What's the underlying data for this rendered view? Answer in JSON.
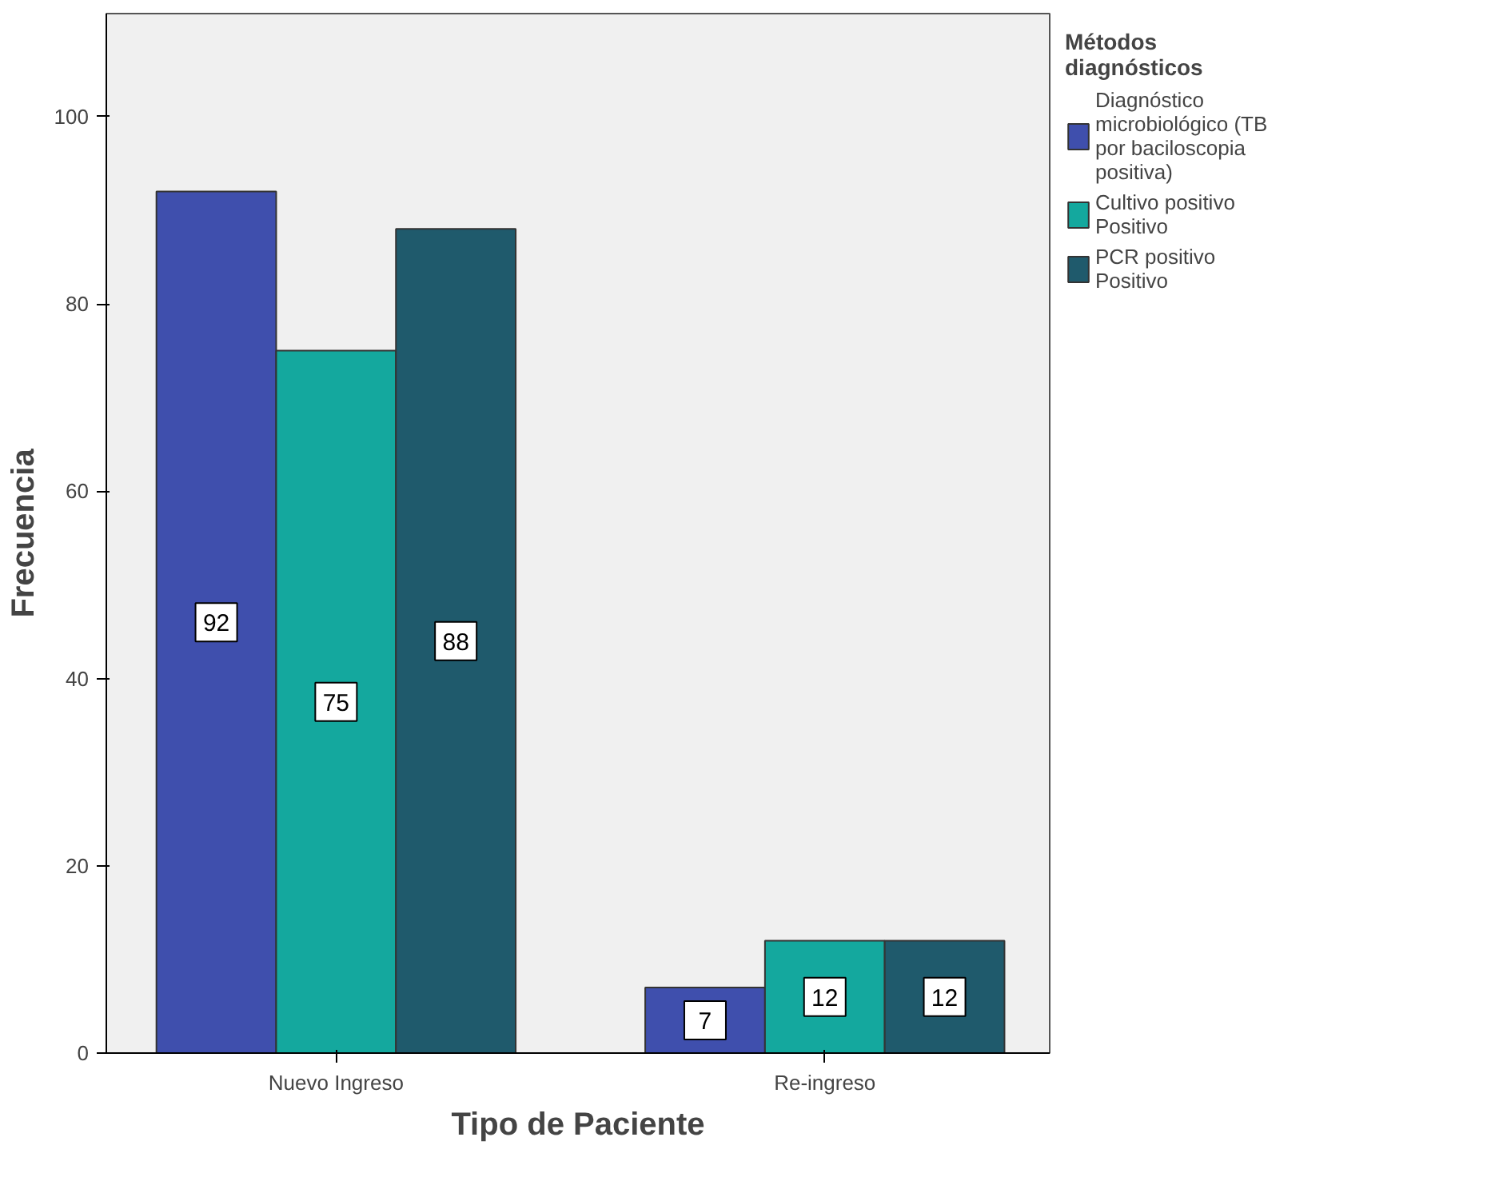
{
  "chart_data": {
    "type": "bar",
    "xlabel": "Tipo de Paciente",
    "ylabel": "Frecuencia",
    "legend_title": "Métodos diagnósticos",
    "categories": [
      "Nuevo Ingreso",
      "Re-ingreso"
    ],
    "series": [
      {
        "name": "Diagnóstico microbiológico (TB por baciloscopia positiva)",
        "color": "#3f4fad",
        "values": [
          92,
          7
        ]
      },
      {
        "name": "Cultivo positivo Positivo",
        "color": "#14a89e",
        "values": [
          75,
          12
        ]
      },
      {
        "name": "PCR positivo Positivo",
        "color": "#1f5a6c",
        "values": [
          88,
          12
        ]
      }
    ],
    "ylim": [
      0,
      111
    ],
    "yticks": [
      0,
      20,
      40,
      60,
      80,
      100
    ],
    "grid": false,
    "legend": "top right",
    "data_labels": true
  }
}
